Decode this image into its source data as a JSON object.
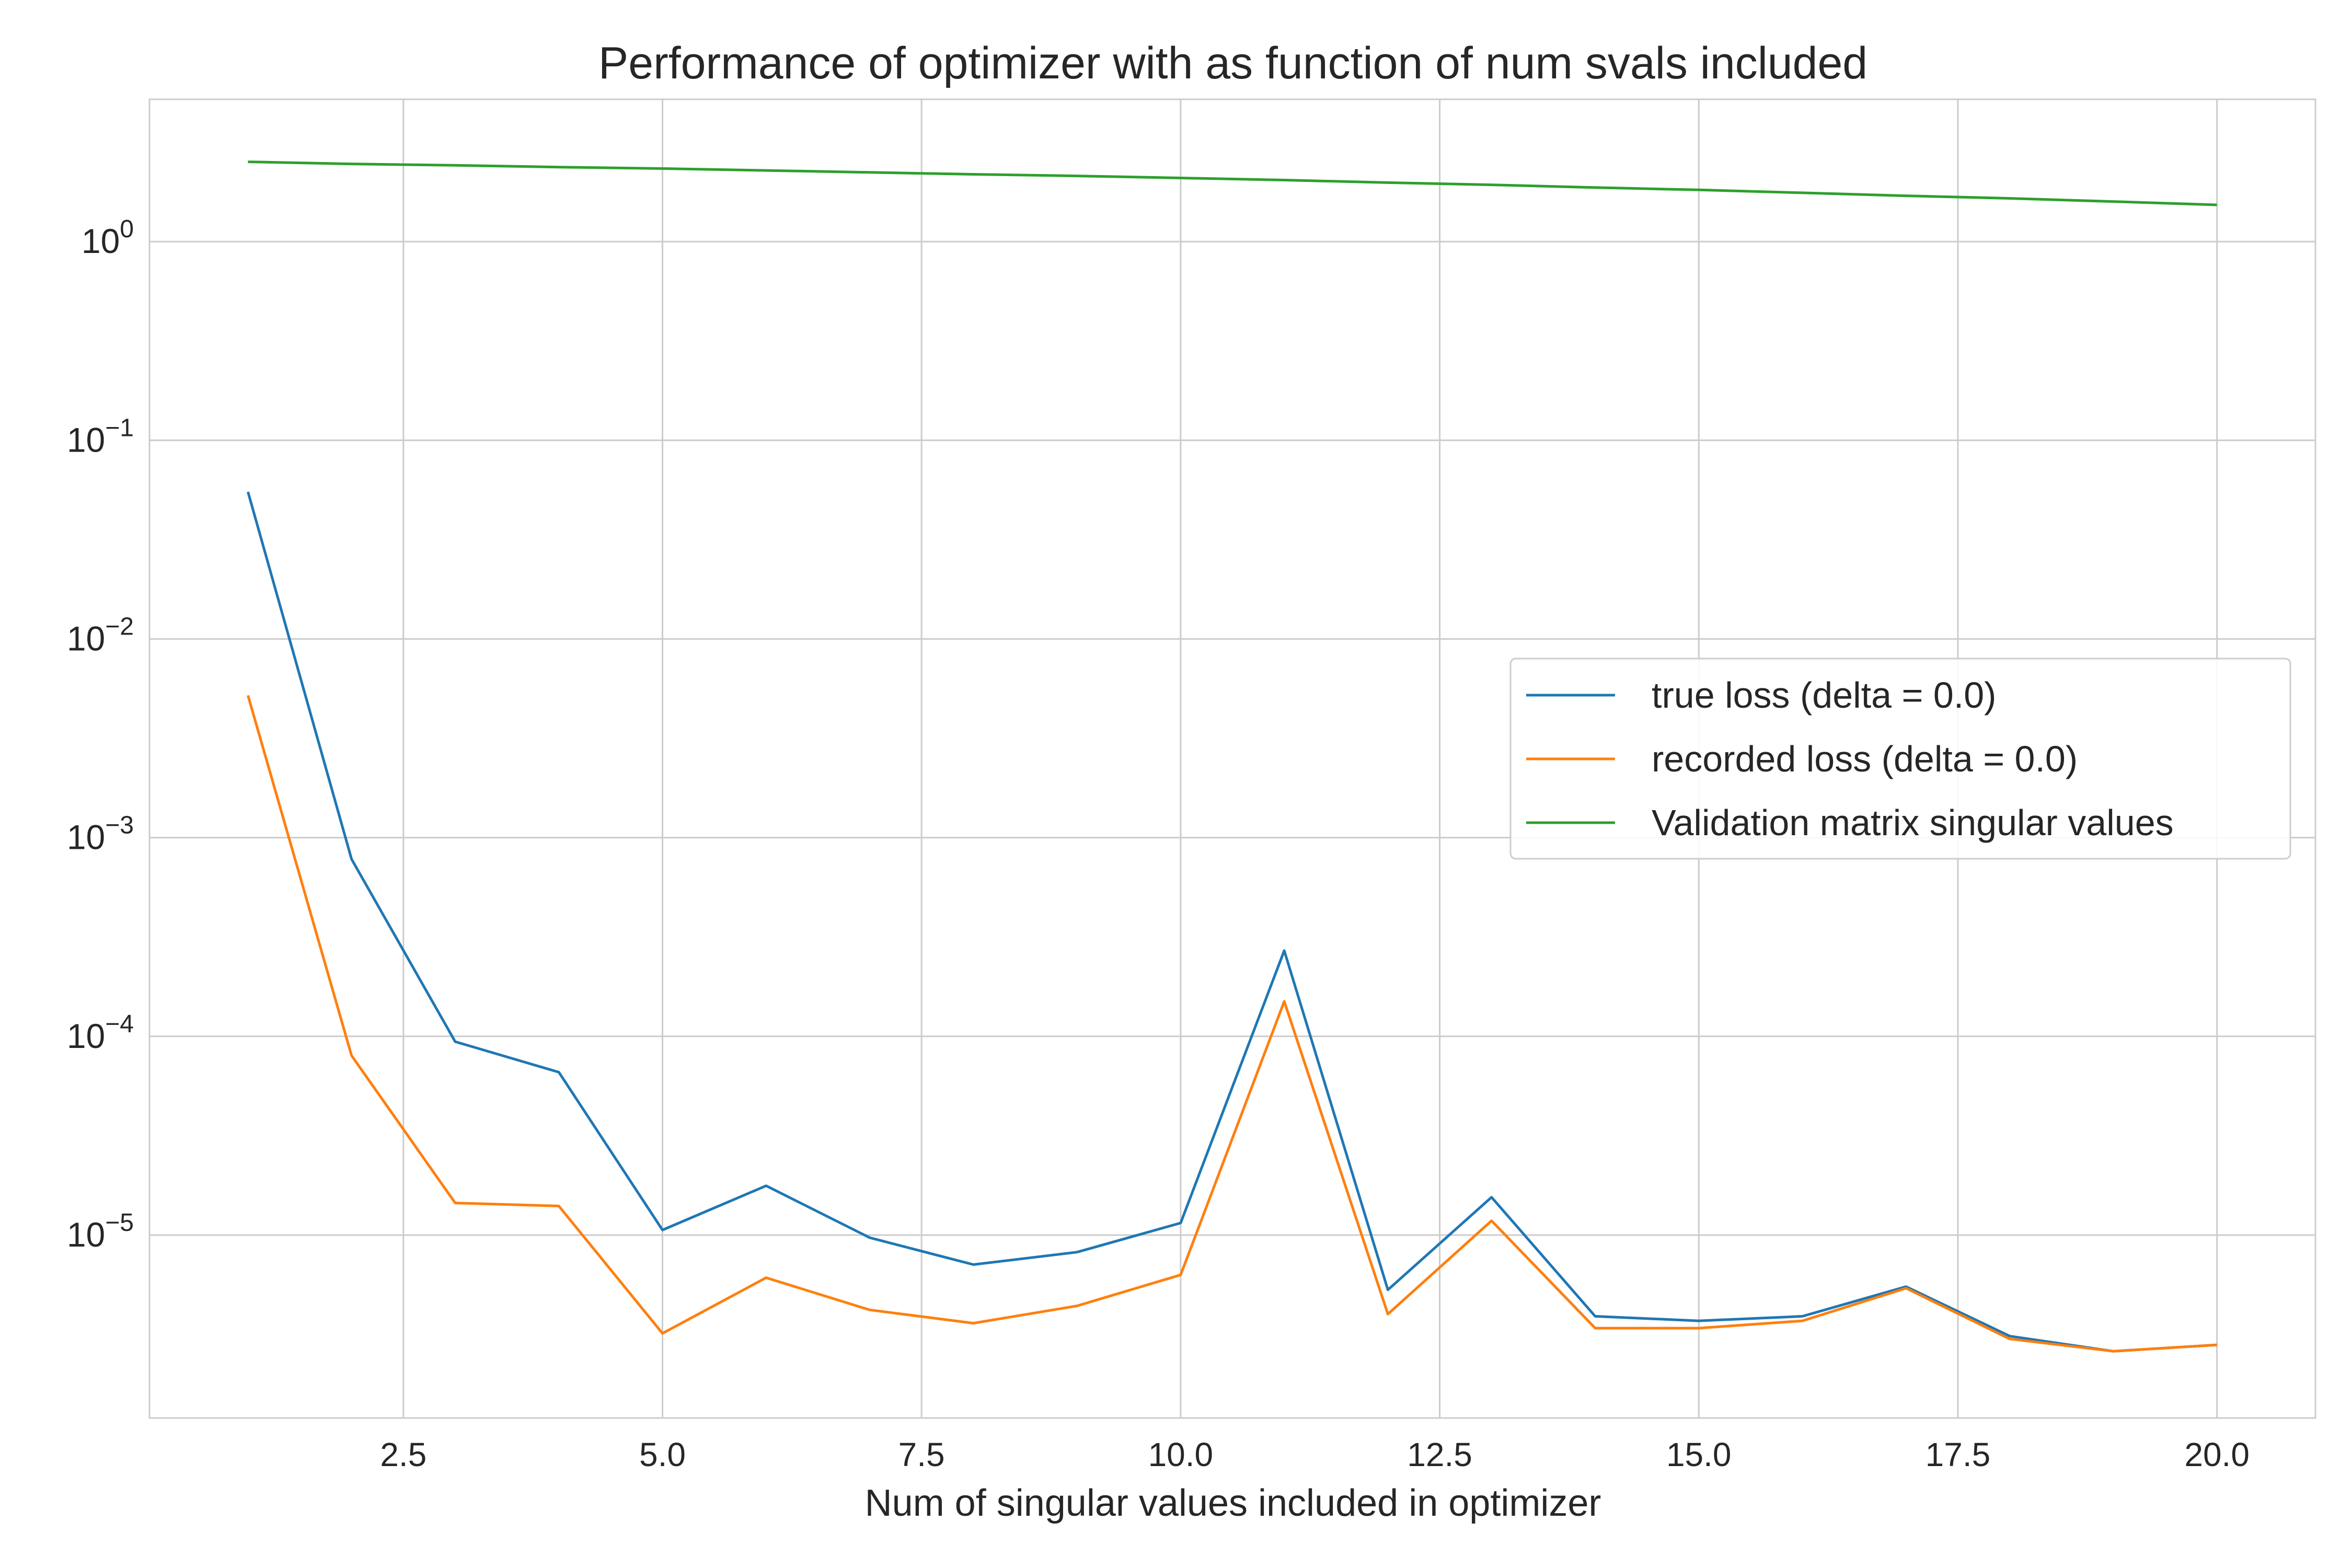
{
  "chart_data": {
    "type": "line",
    "title": "Performance of optimizer with as function of num svals included",
    "xlabel": "Num of singular values included in optimizer",
    "ylabel": "",
    "xlim": [
      0.05,
      20.95
    ],
    "ylim": [
      1.2e-06,
      5.2
    ],
    "yscale": "log",
    "grid": true,
    "legend_position": "center-right",
    "x_ticks": [
      2.5,
      5.0,
      7.5,
      10.0,
      12.5,
      15.0,
      17.5,
      20.0
    ],
    "x_tick_labels": [
      "2.5",
      "5.0",
      "7.5",
      "10.0",
      "12.5",
      "15.0",
      "17.5",
      "20.0"
    ],
    "y_ticks": [
      {
        "value": 1,
        "base": "10",
        "exp": "0"
      },
      {
        "value": 0.1,
        "base": "10",
        "exp": "−1"
      },
      {
        "value": 0.01,
        "base": "10",
        "exp": "−2"
      },
      {
        "value": 0.001,
        "base": "10",
        "exp": "−3"
      },
      {
        "value": 0.0001,
        "base": "10",
        "exp": "−4"
      },
      {
        "value": 1e-05,
        "base": "10",
        "exp": "−5"
      }
    ],
    "x": [
      1,
      2,
      3,
      4,
      5,
      6,
      7,
      8,
      9,
      10,
      11,
      12,
      13,
      14,
      15,
      16,
      17,
      18,
      19,
      20
    ],
    "series": [
      {
        "name": "true loss (delta = 0.0)",
        "color": "#1f77b4",
        "values": [
          0.055,
          0.00078,
          9.4e-05,
          6.6e-05,
          1.06e-05,
          1.77e-05,
          9.7e-06,
          7.1e-06,
          8.2e-06,
          1.15e-05,
          0.00027,
          5.3e-06,
          1.55e-05,
          3.9e-06,
          3.7e-06,
          3.9e-06,
          5.5e-06,
          3.1e-06,
          2.6e-06,
          2.8e-06
        ]
      },
      {
        "name": "recorded loss (delta = 0.0)",
        "color": "#ff7f0e",
        "values": [
          0.0052,
          8e-05,
          1.45e-05,
          1.4e-05,
          3.2e-06,
          6.1e-06,
          4.2e-06,
          3.6e-06,
          4.4e-06,
          6.3e-06,
          0.00015,
          4e-06,
          1.18e-05,
          3.4e-06,
          3.4e-06,
          3.7e-06,
          5.4e-06,
          3e-06,
          2.6e-06,
          2.8e-06
        ]
      },
      {
        "name": "Validation matrix singular values",
        "color": "#2ca02c",
        "values": [
          2.52,
          2.46,
          2.42,
          2.37,
          2.33,
          2.28,
          2.23,
          2.18,
          2.14,
          2.09,
          2.04,
          1.98,
          1.93,
          1.87,
          1.82,
          1.76,
          1.7,
          1.65,
          1.59,
          1.53
        ]
      }
    ]
  }
}
